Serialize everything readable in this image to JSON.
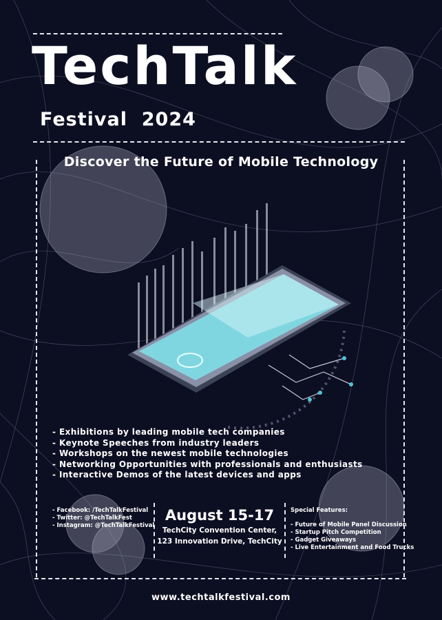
{
  "poster": {
    "title": "TechTalk",
    "subtitle": "Festival  2024",
    "heading": "Discover the Future of Mobile Technology",
    "highlights": [
      "- Exhibitions by leading mobile tech companies",
      "- Keynote Speeches from industry leaders",
      "- Workshops on the newest mobile technologies",
      "- Networking Opportunities with professionals and enthusiasts",
      "- Interactive Demos of the latest devices and apps"
    ],
    "social": [
      "- Facebook: /TechTalkFestival",
      "- Twitter: @TechTalkFest",
      "- Instagram: @TechTalkFestival"
    ],
    "date": "August 15-17",
    "venue_line1": "TechCity Convention Center,",
    "venue_line2": "123 Innovation Drive, TechCity",
    "features_title": "Special Features:",
    "features": [
      "- Future of Mobile Panel Discussion",
      "- Startup Pitch Competition",
      "- Gadget Giveaways",
      "- Live Entertainment and Food Trucks"
    ],
    "url": "www.techtalkfestival.com"
  },
  "colors": {
    "background": "#0c0e22",
    "screen": "#7fd6e0",
    "glow": "#4fc3d6"
  },
  "illustration": "isometric-smartphone-with-data-bars"
}
